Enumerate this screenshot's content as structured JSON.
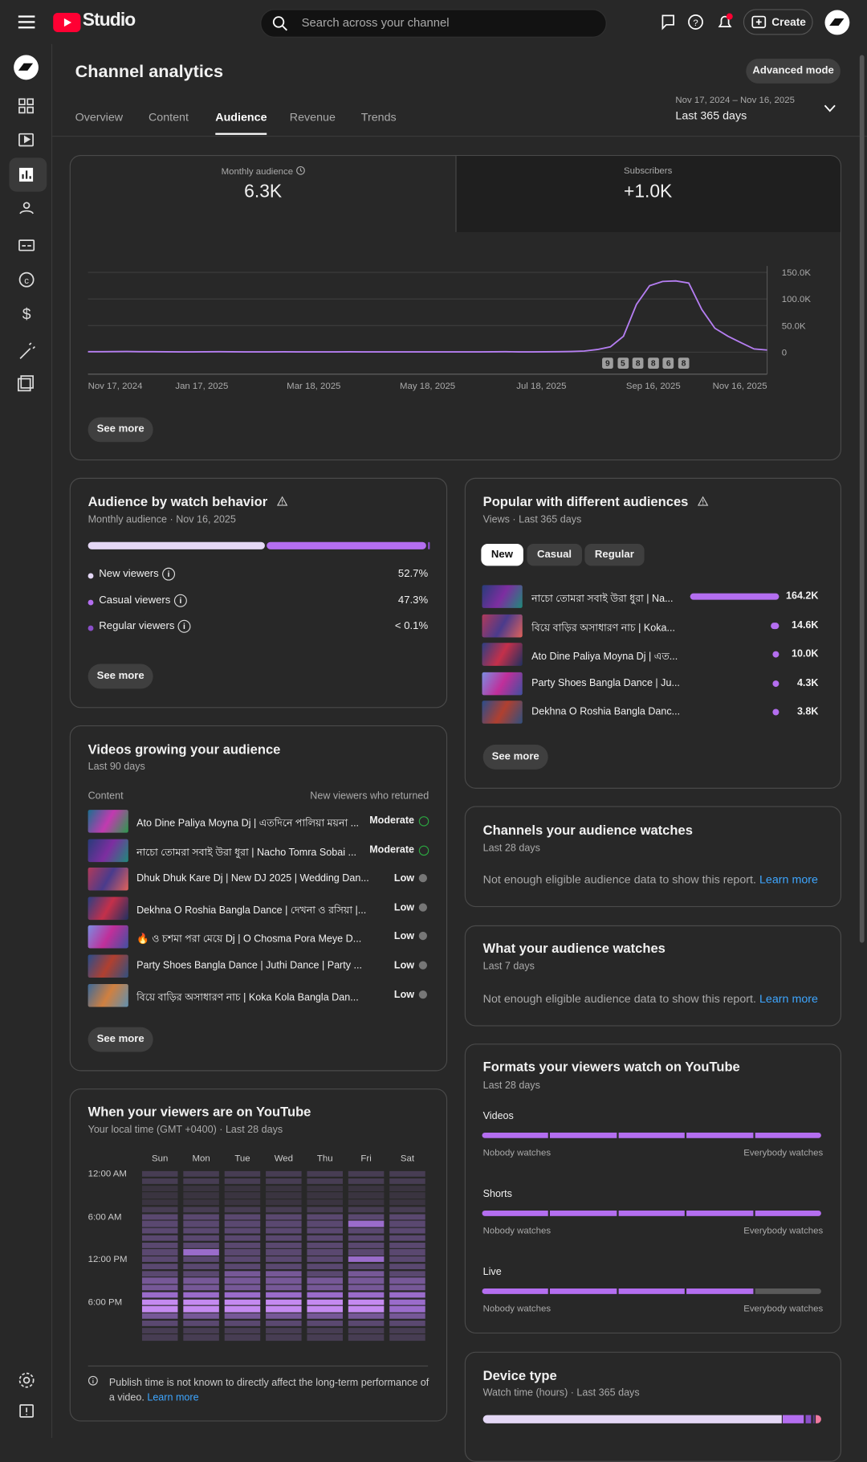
{
  "header": {
    "logo": "Studio",
    "search": "Search across your channel",
    "create": "Create"
  },
  "page": {
    "title": "Channel analytics",
    "advanced": "Advanced mode",
    "tabs": [
      "Overview",
      "Content",
      "Audience",
      "Revenue",
      "Trends"
    ],
    "active_tab": 2,
    "date_range": "Nov 17, 2024 – Nov 16, 2025",
    "period": "Last 365 days"
  },
  "summary": {
    "cards": [
      {
        "label": "Monthly audience",
        "value": "6.3K"
      },
      {
        "label": "Subscribers",
        "value": "+1.0K"
      }
    ],
    "see_more": "See more",
    "markers": [
      9,
      5,
      8,
      8,
      6,
      8
    ]
  },
  "chart_data": {
    "type": "line",
    "color": "#b57ef2",
    "x": [
      "Nov 17, 2024",
      "Nov 24, 2024",
      "Dec 1, 2024",
      "Dec 8, 2024",
      "Dec 15, 2024",
      "Dec 22, 2024",
      "Dec 29, 2024",
      "Jan 5, 2025",
      "Jan 12, 2025",
      "Jan 19, 2025",
      "Jan 26, 2025",
      "Feb 2, 2025",
      "Feb 9, 2025",
      "Feb 16, 2025",
      "Feb 23, 2025",
      "Mar 2, 2025",
      "Mar 9, 2025",
      "Mar 16, 2025",
      "Mar 23, 2025",
      "Mar 30, 2025",
      "Apr 6, 2025",
      "Apr 13, 2025",
      "Apr 20, 2025",
      "Apr 27, 2025",
      "May 4, 2025",
      "May 11, 2025",
      "May 18, 2025",
      "May 25, 2025",
      "Jun 1, 2025",
      "Jun 8, 2025",
      "Jun 15, 2025",
      "Jun 22, 2025",
      "Jun 29, 2025",
      "Jul 6, 2025",
      "Jul 13, 2025",
      "Jul 20, 2025",
      "Jul 27, 2025",
      "Aug 3, 2025",
      "Aug 10, 2025",
      "Aug 17, 2025",
      "Aug 24, 2025",
      "Aug 31, 2025",
      "Sep 7, 2025",
      "Sep 14, 2025",
      "Sep 21, 2025",
      "Sep 28, 2025",
      "Oct 5, 2025",
      "Oct 12, 2025",
      "Oct 19, 2025",
      "Oct 26, 2025",
      "Nov 2, 2025",
      "Nov 9, 2025",
      "Nov 16, 2025"
    ],
    "values": [
      800,
      900,
      1000,
      1200,
      900,
      800,
      700,
      600,
      600,
      700,
      800,
      700,
      600,
      500,
      600,
      700,
      600,
      500,
      500,
      600,
      700,
      600,
      500,
      500,
      600,
      500,
      500,
      600,
      500,
      500,
      600,
      700,
      800,
      600,
      500,
      700,
      900,
      1200,
      2000,
      5000,
      10000,
      30000,
      90000,
      125000,
      133000,
      134000,
      130000,
      80000,
      45000,
      30000,
      18000,
      6000,
      4000
    ],
    "xlim": [
      "Nov 17, 2024",
      "Nov 16, 2025"
    ],
    "xticks": [
      "Nov 17, 2024",
      "Jan 17, 2025",
      "Mar 18, 2025",
      "May 18, 2025",
      "Jul 18, 2025",
      "Sep 16, 2025",
      "Nov 16, 2025"
    ],
    "ylim": [
      0,
      150000
    ],
    "yticks": [
      0,
      {
        "value": 50000,
        "label": "50.0K"
      },
      {
        "value": 100000,
        "label": "100.0K"
      },
      {
        "value": 150000,
        "label": "150.0K"
      }
    ],
    "grid": true
  },
  "watch_behavior": {
    "title": "Audience by watch behavior",
    "subtitle": "Monthly audience · Nov 16, 2025",
    "segments": [
      {
        "name": "New viewers",
        "value": 52.7,
        "value_label": "52.7%",
        "color": "#e4d7f5"
      },
      {
        "name": "Casual viewers",
        "value": 47.3,
        "value_label": "47.3%",
        "color": "#b46ef0"
      },
      {
        "name": "Regular viewers",
        "value": 0.1,
        "value_label": "< 0.1%",
        "color": "#8a4fc9"
      }
    ],
    "see_more": "See more"
  },
  "popular": {
    "title": "Popular with different audiences",
    "subtitle": "Views · Last 365 days",
    "filters": [
      "New",
      "Casual",
      "Regular"
    ],
    "active_filter": 0,
    "color": "#b46ef0",
    "rows": [
      {
        "title": "নাচো তোমরা সবাই উরা ধুরা | Na...",
        "value": 164200,
        "value_label": "164.2K"
      },
      {
        "title": "বিয়ে বাড়ির অসাধারণ নাচ | Koka...",
        "value": 14600,
        "value_label": "14.6K"
      },
      {
        "title": "Ato Dine Paliya Moyna Dj | এত...",
        "value": 10000,
        "value_label": "10.0K"
      },
      {
        "title": "Party Shoes Bangla Dance | Ju...",
        "value": 4300,
        "value_label": "4.3K"
      },
      {
        "title": "Dekhna O Roshia Bangla Danc...",
        "value": 3800,
        "value_label": "3.8K"
      }
    ],
    "see_more": "See more"
  },
  "growing": {
    "title": "Videos growing your audience",
    "subtitle": "Last 90 days",
    "col_content": "Content",
    "col_returned": "New viewers who returned",
    "rows": [
      {
        "title": "Ato Dine Paliya Moyna Dj | এতদিনে পালিয়া ময়না ...",
        "level": "Moderate"
      },
      {
        "title": "নাচো তোমরা সবাই উরা ধুরা | Nacho Tomra Sobai ...",
        "level": "Moderate"
      },
      {
        "title": "Dhuk Dhuk Kare Dj | New DJ 2025 | Wedding Dan...",
        "level": "Low"
      },
      {
        "title": "Dekhna O Roshia Bangla Dance | দেখনা ও রসিয়া |...",
        "level": "Low"
      },
      {
        "title": "🔥 ও চশমা পরা মেয়ে Dj | O Chosma Pora Meye D...",
        "level": "Low"
      },
      {
        "title": "Party Shoes Bangla Dance | Juthi Dance | Party ...",
        "level": "Low"
      },
      {
        "title": "বিয়ে বাড়ির অসাধারণ নাচ | Koka Kola Bangla Dan...",
        "level": "Low"
      }
    ],
    "see_more": "See more"
  },
  "channels": {
    "title": "Channels your audience watches",
    "subtitle": "Last 28 days",
    "text": "Not enough eligible audience data to show this report.",
    "learn_more": "Learn more"
  },
  "what_watches": {
    "title": "What your audience watches",
    "subtitle": "Last 7 days",
    "text": "Not enough eligible audience data to show this report.",
    "learn_more": "Learn more"
  },
  "heatmap": {
    "title": "When your viewers are on YouTube",
    "subtitle": "Your local time (GMT +0400) · Last 28 days",
    "days": [
      "Sun",
      "Mon",
      "Tue",
      "Wed",
      "Thu",
      "Fri",
      "Sat"
    ],
    "time_labels": [
      "12:00 AM",
      "6:00 AM",
      "12:00 PM",
      "6:00 PM"
    ],
    "levels": [
      [
        1,
        1,
        0,
        0,
        0,
        1,
        2,
        2,
        2,
        2,
        2,
        2,
        2,
        2,
        2,
        3,
        3,
        4,
        5,
        5,
        3,
        2,
        1,
        1
      ],
      [
        1,
        1,
        0,
        0,
        0,
        1,
        2,
        2,
        2,
        2,
        2,
        4,
        2,
        2,
        2,
        3,
        3,
        4,
        5,
        5,
        3,
        2,
        1,
        1
      ],
      [
        1,
        1,
        0,
        0,
        0,
        1,
        2,
        2,
        2,
        2,
        2,
        2,
        2,
        2,
        3,
        3,
        3,
        4,
        5,
        5,
        3,
        2,
        1,
        1
      ],
      [
        1,
        1,
        0,
        0,
        0,
        1,
        2,
        2,
        2,
        2,
        2,
        2,
        2,
        2,
        3,
        3,
        3,
        4,
        5,
        5,
        3,
        2,
        1,
        1
      ],
      [
        1,
        1,
        0,
        0,
        0,
        1,
        2,
        2,
        2,
        2,
        2,
        2,
        2,
        2,
        2,
        3,
        3,
        4,
        5,
        5,
        3,
        2,
        1,
        1
      ],
      [
        1,
        1,
        0,
        0,
        0,
        1,
        2,
        4,
        2,
        2,
        2,
        2,
        4,
        2,
        3,
        3,
        3,
        4,
        5,
        5,
        3,
        2,
        1,
        1
      ],
      [
        1,
        1,
        0,
        0,
        0,
        1,
        2,
        2,
        2,
        2,
        2,
        2,
        2,
        2,
        2,
        3,
        3,
        4,
        4,
        4,
        3,
        2,
        1,
        1
      ]
    ],
    "colors": [
      "#3a3440",
      "#473d53",
      "#5a4870",
      "#765897",
      "#9a6ccb",
      "#c48af0"
    ],
    "note": "Publish time is not known to directly affect the long-term performance of a video.",
    "learn_more": "Learn more"
  },
  "formats": {
    "title": "Formats your viewers watch on YouTube",
    "subtitle": "Last 28 days",
    "low": "Nobody watches",
    "high": "Everybody watches",
    "rows": [
      {
        "name": "Videos",
        "level": 5
      },
      {
        "name": "Shorts",
        "level": 5
      },
      {
        "name": "Live",
        "level": 4
      }
    ]
  },
  "device": {
    "title": "Device type",
    "subtitle": "Watch time (hours) · Last 365 days",
    "values": [
      86,
      6.5,
      2,
      1,
      2
    ],
    "colors": [
      "#e4d7f5",
      "#b46ef0",
      "#8a4fc9",
      "#5a3c80",
      "#f07aa0"
    ]
  }
}
